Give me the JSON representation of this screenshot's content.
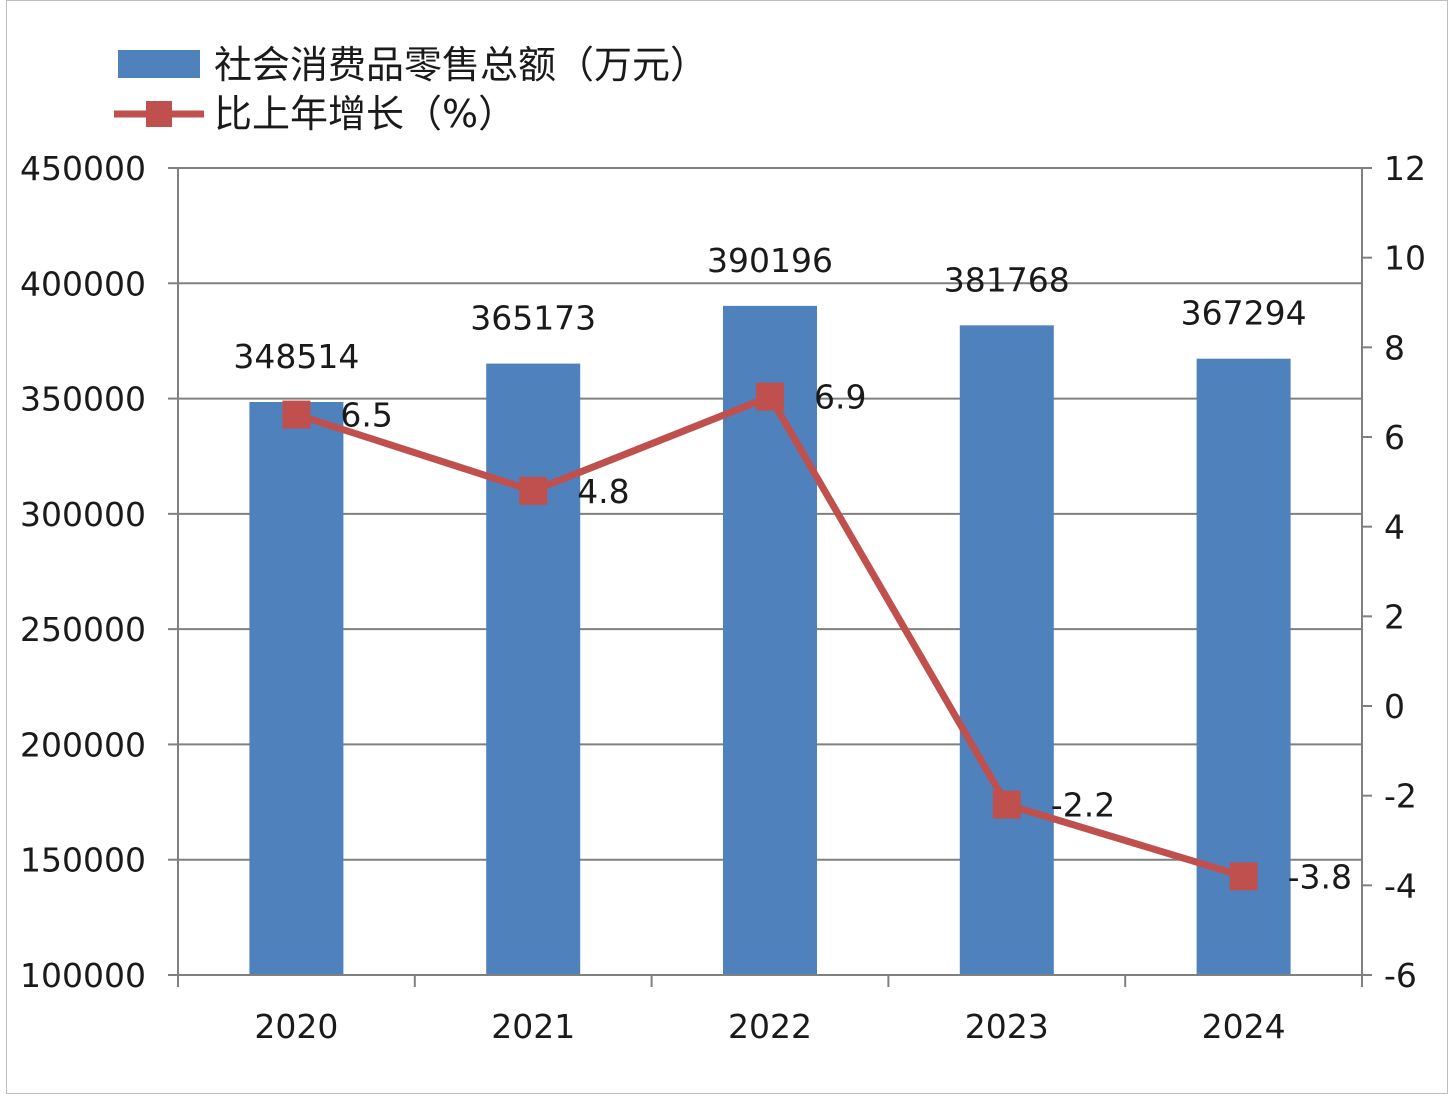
{
  "chart_data": {
    "type": "bar",
    "categories": [
      "2020",
      "2021",
      "2022",
      "2023",
      "2024"
    ],
    "series": [
      {
        "name": "社会消费品零售总额（万元）",
        "type": "bar",
        "axis": "left",
        "values": [
          348514,
          365173,
          390196,
          381768,
          367294
        ],
        "color": "#4f81bd"
      },
      {
        "name": "比上年增长（%）",
        "type": "line",
        "axis": "right",
        "values": [
          6.5,
          4.8,
          6.9,
          -2.2,
          -3.8
        ],
        "color": "#c0504d"
      }
    ],
    "y_left": {
      "min": 100000,
      "max": 450000,
      "ticks": [
        "100000",
        "150000",
        "200000",
        "250000",
        "300000",
        "350000",
        "400000",
        "450000"
      ]
    },
    "y_right": {
      "min": -6,
      "max": 12,
      "ticks": [
        "-6",
        "-4",
        "-2",
        "0",
        "2",
        "4",
        "6",
        "8",
        "10",
        "12"
      ]
    },
    "bar_labels": [
      "348514",
      "365173",
      "390196",
      "381768",
      "367294"
    ],
    "line_labels": [
      "6.5",
      "4.8",
      "6.9",
      "-2.2",
      "-3.8"
    ],
    "grid": true,
    "legend_position": "top-left"
  }
}
